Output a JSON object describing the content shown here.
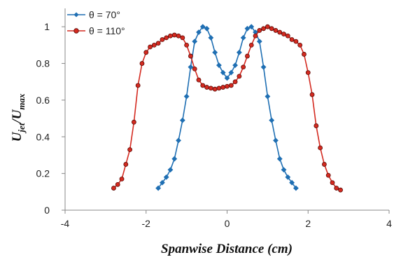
{
  "chart_data": {
    "type": "line",
    "xlabel": "Spanwise Distance (cm)",
    "ylabel": {
      "main": "U",
      "sub1": "jet",
      "slash": "/U",
      "sub2": "max"
    },
    "xlim": [
      -4,
      4
    ],
    "ylim": [
      0,
      1.1
    ],
    "xticks": [
      -4,
      -2,
      0,
      2,
      4
    ],
    "yticks": [
      0,
      0.2,
      0.4,
      0.6,
      0.8,
      1
    ],
    "grid": false,
    "legend_position": "top-left",
    "series": [
      {
        "name": "θ = 70°",
        "color": "#1f6fb3",
        "marker": "diamond",
        "x": [
          -1.7,
          -1.6,
          -1.5,
          -1.4,
          -1.3,
          -1.2,
          -1.1,
          -1.0,
          -0.9,
          -0.8,
          -0.7,
          -0.6,
          -0.5,
          -0.4,
          -0.3,
          -0.2,
          -0.1,
          0.0,
          0.1,
          0.2,
          0.3,
          0.4,
          0.5,
          0.6,
          0.7,
          0.8,
          0.9,
          1.0,
          1.1,
          1.2,
          1.3,
          1.4,
          1.5,
          1.6,
          1.7
        ],
        "y": [
          0.12,
          0.15,
          0.18,
          0.22,
          0.28,
          0.38,
          0.49,
          0.62,
          0.78,
          0.92,
          0.97,
          1.0,
          0.99,
          0.94,
          0.86,
          0.79,
          0.75,
          0.72,
          0.75,
          0.79,
          0.86,
          0.94,
          0.99,
          1.0,
          0.97,
          0.92,
          0.78,
          0.62,
          0.49,
          0.38,
          0.28,
          0.22,
          0.18,
          0.15,
          0.12
        ]
      },
      {
        "name": "θ = 110°",
        "color": "#d42a20",
        "marker": "circle",
        "x": [
          -2.8,
          -2.7,
          -2.6,
          -2.5,
          -2.4,
          -2.3,
          -2.2,
          -2.1,
          -2.0,
          -1.9,
          -1.8,
          -1.7,
          -1.6,
          -1.5,
          -1.4,
          -1.3,
          -1.2,
          -1.1,
          -1.0,
          -0.9,
          -0.8,
          -0.7,
          -0.6,
          -0.5,
          -0.4,
          -0.3,
          -0.2,
          -0.1,
          0.0,
          0.1,
          0.2,
          0.3,
          0.4,
          0.5,
          0.6,
          0.7,
          0.8,
          0.9,
          1.0,
          1.1,
          1.2,
          1.3,
          1.4,
          1.5,
          1.6,
          1.7,
          1.8,
          1.9,
          2.0,
          2.1,
          2.2,
          2.3,
          2.4,
          2.5,
          2.6,
          2.7,
          2.8
        ],
        "y": [
          0.12,
          0.14,
          0.17,
          0.25,
          0.33,
          0.48,
          0.68,
          0.8,
          0.86,
          0.89,
          0.9,
          0.91,
          0.93,
          0.94,
          0.95,
          0.955,
          0.95,
          0.94,
          0.9,
          0.84,
          0.77,
          0.71,
          0.68,
          0.67,
          0.665,
          0.66,
          0.665,
          0.67,
          0.675,
          0.68,
          0.7,
          0.73,
          0.78,
          0.84,
          0.9,
          0.95,
          0.98,
          0.99,
          1.0,
          0.99,
          0.98,
          0.97,
          0.96,
          0.95,
          0.93,
          0.92,
          0.9,
          0.85,
          0.75,
          0.63,
          0.46,
          0.34,
          0.25,
          0.19,
          0.15,
          0.12,
          0.11
        ]
      }
    ]
  }
}
